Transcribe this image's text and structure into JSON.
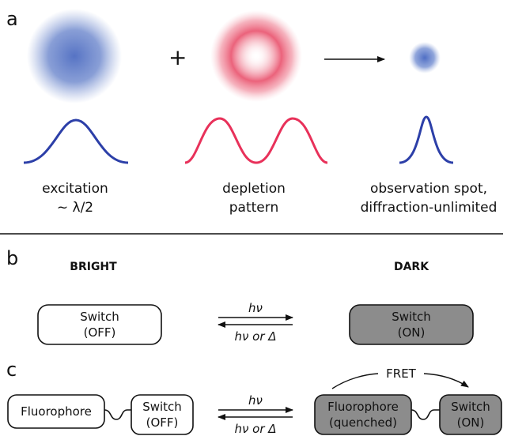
{
  "panels": {
    "a": {
      "letter": "a",
      "plus": "+",
      "captions": [
        {
          "line1": "excitation",
          "line2": "~ λ/2"
        },
        {
          "line1": "depletion",
          "line2": "pattern"
        },
        {
          "line1": "observation spot,",
          "line2": "diffraction-unlimited"
        }
      ]
    },
    "b": {
      "letter": "b",
      "bright": "BRIGHT",
      "dark": "DARK",
      "switch_off": {
        "line1": "Switch",
        "line2": "(OFF)"
      },
      "switch_on": {
        "line1": "Switch",
        "line2": "(ON)"
      },
      "forward": "hν",
      "reverse": "hν or Δ"
    },
    "c": {
      "letter": "c",
      "fluorophore": "Fluorophore",
      "switch_off": {
        "line1": "Switch",
        "line2": "(OFF)"
      },
      "fluorophore_q": {
        "line1": "Fluorophore",
        "line2": "(quenched)"
      },
      "switch_on": {
        "line1": "Switch",
        "line2": "(ON)"
      },
      "forward": "hν",
      "reverse": "hν or Δ",
      "fret": "FRET"
    }
  },
  "colors": {
    "blue": "#2c3fa8",
    "blue_spot": "#5b78c8",
    "red": "#e8315a",
    "red_spot": "#ef6a80",
    "dark_fill": "#8c8c8c"
  }
}
